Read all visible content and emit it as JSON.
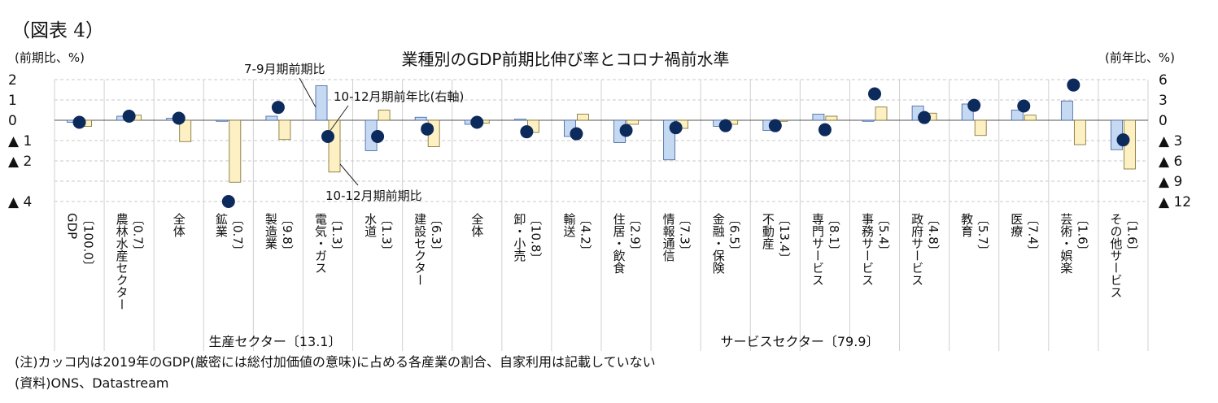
{
  "figure_label": "（図表 4）",
  "note": "(注)カッコ内は2019年のGDP(厳密には総付加価値の意味)に占める各産業の割合、自家利用は記載していない",
  "source": "(資料)ONS、Datastream",
  "chart_data": {
    "type": "bar",
    "title": "業種別のGDP前期比伸び率とコロナ禍前水準",
    "left_axis_label": "(前期比、%)",
    "right_axis_label": "(前年比、%)",
    "y_left": {
      "min": -4,
      "max": 2,
      "ticks": [
        2,
        1,
        0,
        -1,
        -2,
        -4
      ],
      "tick_labels": [
        "2",
        "1",
        "0",
        "▲ 1",
        "▲ 2",
        "▲ 4"
      ]
    },
    "y_right": {
      "min": -12,
      "max": 6,
      "ticks": [
        6,
        3,
        0,
        -3,
        -6,
        -9,
        -12
      ],
      "tick_labels": [
        "6",
        "3",
        "0",
        "▲ 3",
        "▲ 6",
        "▲ 9",
        "▲ 12"
      ]
    },
    "categories": [
      {
        "name": "GDP",
        "share": "〔100.0〕"
      },
      {
        "name": "農林水産セクター",
        "share": "〔0.7〕"
      },
      {
        "name": "全体",
        "share": ""
      },
      {
        "name": "鉱業",
        "share": "〔0.7〕"
      },
      {
        "name": "製造業",
        "share": "〔9.8〕"
      },
      {
        "name": "電気・ガス",
        "share": "〔1.3〕"
      },
      {
        "name": "水道",
        "share": "〔1.3〕"
      },
      {
        "name": "建設セクター",
        "share": "〔6.3〕"
      },
      {
        "name": "全体",
        "share": ""
      },
      {
        "name": "卸・小売",
        "share": "〔10.8〕"
      },
      {
        "name": "輸送",
        "share": "〔4.2〕"
      },
      {
        "name": "住居・飲食",
        "share": "〔2.9〕"
      },
      {
        "name": "情報通信",
        "share": "〔7.3〕"
      },
      {
        "name": "金融・保険",
        "share": "〔6.5〕"
      },
      {
        "name": "不動産",
        "share": "〔13.4〕"
      },
      {
        "name": "専門サービス",
        "share": "〔8.1〕"
      },
      {
        "name": "事務サービス",
        "share": "〔5.4〕"
      },
      {
        "name": "政府サービス",
        "share": "〔4.8〕"
      },
      {
        "name": "教育",
        "share": "〔5.7〕"
      },
      {
        "name": "医療",
        "share": "〔7.4〕"
      },
      {
        "name": "芸術・娯楽",
        "share": "〔1.6〕"
      },
      {
        "name": "その他サービス",
        "share": "〔1.6〕"
      }
    ],
    "series": [
      {
        "name": "7-9月期前期比",
        "axis": "left",
        "kind": "bar",
        "color": "#c5daf2",
        "border": "#3b5f9e",
        "values": [
          -0.1,
          0.2,
          0.1,
          -0.05,
          0.2,
          1.7,
          -1.5,
          0.15,
          -0.2,
          0.05,
          -0.8,
          -1.1,
          -1.95,
          -0.3,
          -0.5,
          0.3,
          -0.05,
          0.7,
          0.8,
          0.5,
          0.95,
          -1.45
        ]
      },
      {
        "name": "10-12月期前期比",
        "axis": "left",
        "kind": "bar",
        "color": "#fdf1c4",
        "border": "#7a6a2a",
        "values": [
          -0.3,
          0.25,
          -1.05,
          -3.05,
          -0.95,
          -2.55,
          0.5,
          -1.3,
          -0.15,
          -0.6,
          0.3,
          -0.2,
          -0.4,
          -0.2,
          -0.05,
          0.2,
          0.65,
          0.35,
          -0.75,
          0.25,
          -1.2,
          -2.4
        ]
      },
      {
        "name": "10-12月期前年比(右軸)",
        "axis": "right",
        "kind": "dot",
        "color": "#0d2a5c",
        "values": [
          -0.3,
          0.6,
          0.3,
          -12.0,
          1.9,
          -2.4,
          -2.4,
          -1.3,
          -0.3,
          -1.7,
          -2.0,
          -1.5,
          -1.1,
          -0.8,
          -0.8,
          -1.4,
          3.9,
          0.4,
          2.2,
          2.1,
          5.2,
          -2.9
        ]
      }
    ],
    "annotations": [
      {
        "text": "7-9月期前期比"
      },
      {
        "text": "10-12月期前年比(右軸)"
      },
      {
        "text": "10-12月期前期比"
      }
    ],
    "groups": [
      {
        "label": "生産セクター〔13.1〕"
      },
      {
        "label": "サービスセクター〔79.9〕"
      }
    ]
  }
}
